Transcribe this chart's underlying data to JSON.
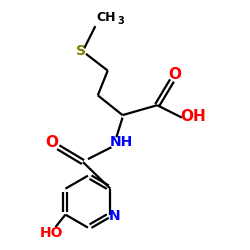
{
  "bg_color": "#ffffff",
  "bond_color": "#000000",
  "red_color": "#ff0000",
  "blue_color": "#0000ff",
  "s_color": "#808000",
  "line_width": 1.6,
  "figsize": [
    2.5,
    2.5
  ],
  "dpi": 100,
  "ch3_text": "CH",
  "ch3_sub": "3",
  "s_text": "S",
  "oh_text": "OH",
  "o_text": "O",
  "nh_text": "NH",
  "ho_text": "HO",
  "n_text": "N",
  "xlim": [
    0,
    10
  ],
  "ylim": [
    0,
    10
  ]
}
